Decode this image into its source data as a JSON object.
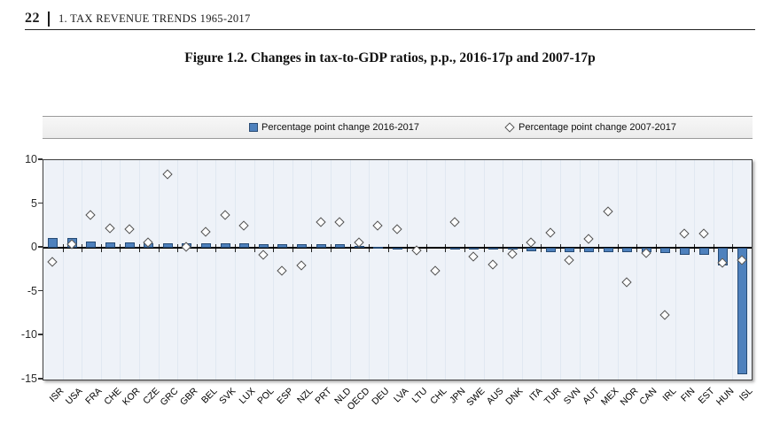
{
  "page": {
    "page_number": "22",
    "running_header": "1. TAX REVENUE TRENDS 1965-2017",
    "figure_title": "Figure 1.2. Changes in tax-to-GDP ratios, p.p., 2016-17p and 2007-17p"
  },
  "chart_data": {
    "type": "bar",
    "title": "Figure 1.2. Changes in tax-to-GDP ratios, p.p., 2016-17p and 2007-17p",
    "legend_position": "top",
    "grid": "faint vertical gridlines only",
    "ylim": [
      -15,
      10
    ],
    "yticks": [
      10,
      5,
      0,
      -5,
      -10,
      -15
    ],
    "categories": [
      "ISR",
      "USA",
      "FRA",
      "CHE",
      "KOR",
      "CZE",
      "GRC",
      "GBR",
      "BEL",
      "SVK",
      "LUX",
      "POL",
      "ESP",
      "NZL",
      "PRT",
      "NLD",
      "OECD",
      "DEU",
      "LVA",
      "LTU",
      "CHL",
      "JPN",
      "SWE",
      "AUS",
      "DNK",
      "ITA",
      "TUR",
      "SVN",
      "AUT",
      "MEX",
      "NOR",
      "CAN",
      "IRL",
      "FIN",
      "EST",
      "HUN",
      "ISL"
    ],
    "series": [
      {
        "name": "Percentage point change 2016-2017",
        "type": "bar",
        "marker": "square",
        "values": [
          1.1,
          1.1,
          0.7,
          0.6,
          0.6,
          0.55,
          0.5,
          0.5,
          0.5,
          0.5,
          0.5,
          0.45,
          0.45,
          0.45,
          0.45,
          0.4,
          0.2,
          0.1,
          0.05,
          0.0,
          0.0,
          0.05,
          -0.2,
          -0.2,
          -0.15,
          -0.35,
          -0.45,
          -0.5,
          -0.5,
          -0.5,
          -0.5,
          -0.45,
          -0.6,
          -0.8,
          -0.8,
          -2.0,
          -14.4
        ]
      },
      {
        "name": "Percentage point change 2007-2017",
        "type": "scatter",
        "marker": "diamond",
        "values": [
          -1.6,
          0.4,
          3.7,
          2.2,
          2.1,
          0.55,
          8.3,
          0.1,
          1.8,
          3.7,
          2.5,
          -0.8,
          -2.7,
          -2.0,
          2.9,
          2.9,
          0.55,
          2.5,
          2.1,
          -0.3,
          -2.7,
          2.9,
          -1.0,
          -1.9,
          -0.7,
          0.6,
          1.7,
          -1.4,
          1.0,
          4.1,
          -4.0,
          -0.6,
          -7.7,
          1.6,
          1.6,
          -1.7,
          -1.4
        ]
      }
    ],
    "colors": {
      "bar_fill": "#4e81bd",
      "bar_border": "#254a74",
      "diamond_fill": "#ffffff",
      "diamond_border": "#4f4f4f",
      "plot_background": "#eef2f8"
    }
  }
}
